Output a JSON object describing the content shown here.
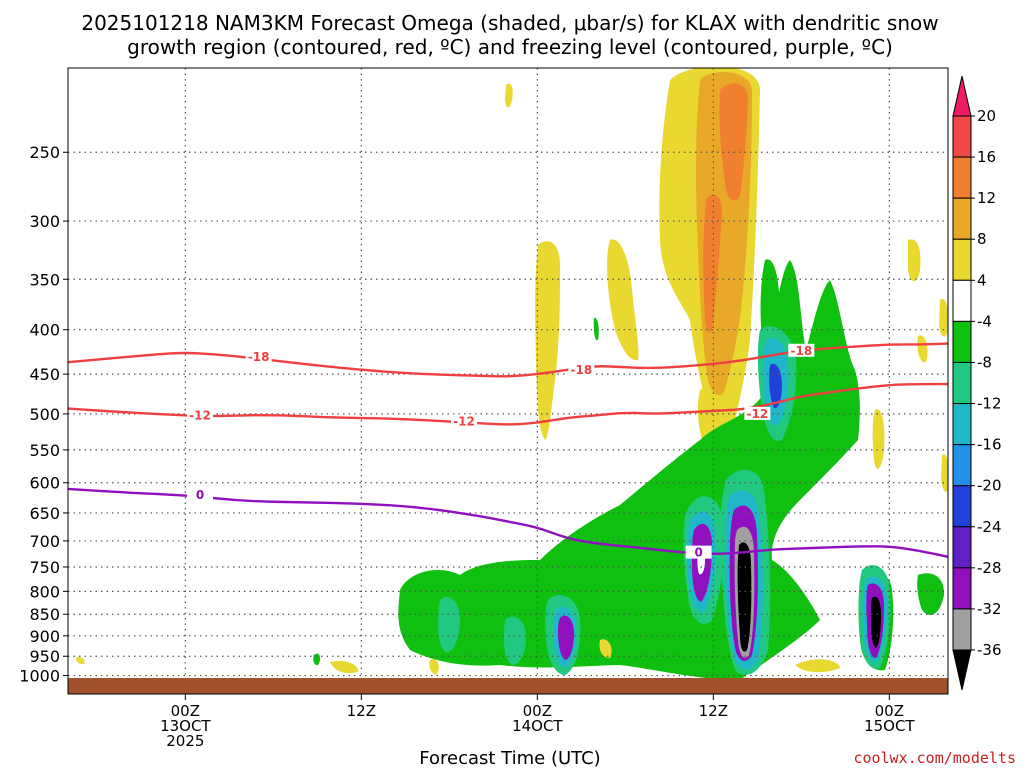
{
  "chart_data": {
    "type": "heatmap",
    "title_line1": "2025101218 NAM3KM Forecast Omega (shaded, μbar/s) for KLAX with dendritic snow",
    "title_line2": "growth region (contoured, red, ºC) and freezing level (contoured, purple, ºC)",
    "xlabel": "Forecast Time (UTC)",
    "credit": "coolwx.com/modelts",
    "colors": {
      "dgz": "#ee4040",
      "freezing": "#9010c0",
      "ground": "#a0522d",
      "credit": "#cc2020"
    },
    "y_axis": {
      "scale": "log-pressure",
      "range": [
        1050,
        200
      ],
      "ticks": [
        250,
        300,
        350,
        400,
        450,
        500,
        550,
        600,
        650,
        700,
        750,
        800,
        850,
        900,
        950,
        1000
      ]
    },
    "x_axis": {
      "range": [
        -4,
        26
      ],
      "ticks": [
        {
          "hour": 0,
          "lines": [
            "00Z",
            "13OCT",
            "2025"
          ]
        },
        {
          "hour": 6,
          "lines": [
            "12Z"
          ]
        },
        {
          "hour": 12,
          "lines": [
            "00Z",
            "14OCT"
          ]
        },
        {
          "hour": 18,
          "lines": [
            "12Z"
          ]
        },
        {
          "hour": 24,
          "lines": [
            "00Z",
            "15OCT"
          ]
        }
      ]
    },
    "colorbar": {
      "labels": [
        20,
        16,
        12,
        8,
        4,
        -4,
        -8,
        -12,
        -16,
        -20,
        -24,
        -28,
        -32,
        -36
      ],
      "colors": [
        "#ee1c60",
        "#f04848",
        "#f08030",
        "#e8a828",
        "#e8d830",
        "#ffffff",
        "#10c010",
        "#20c880",
        "#20b8c8",
        "#2090e8",
        "#2040d8",
        "#6020c8",
        "#9010c0",
        "#a0a0a0",
        "#000000"
      ]
    },
    "contours": [
      {
        "label": "-18",
        "color": "#ee4040",
        "points": [
          [
            -4,
            436
          ],
          [
            -2,
            430
          ],
          [
            -1,
            427
          ],
          [
            0,
            425
          ],
          [
            1,
            427
          ],
          [
            2,
            430
          ],
          [
            4,
            438
          ],
          [
            6,
            445
          ],
          [
            8,
            450
          ],
          [
            10,
            452
          ],
          [
            11,
            453
          ],
          [
            12,
            450
          ],
          [
            13,
            445
          ],
          [
            14,
            440
          ],
          [
            15,
            442
          ],
          [
            16,
            443
          ],
          [
            17,
            441
          ],
          [
            18,
            438
          ],
          [
            19,
            434
          ],
          [
            20,
            428
          ],
          [
            21,
            423
          ],
          [
            22,
            420
          ],
          [
            23,
            418
          ],
          [
            24,
            416
          ],
          [
            25,
            416
          ],
          [
            26,
            415
          ]
        ],
        "label_at": [
          [
            2.5,
            430
          ],
          [
            13.5,
            445
          ],
          [
            21.0,
            423
          ]
        ]
      },
      {
        "label": "-12",
        "color": "#ee4040",
        "points": [
          [
            -4,
            493
          ],
          [
            -2,
            498
          ],
          [
            0,
            502
          ],
          [
            1,
            503
          ],
          [
            3,
            501
          ],
          [
            5,
            505
          ],
          [
            7,
            506
          ],
          [
            9,
            510
          ],
          [
            11,
            515
          ],
          [
            12,
            512
          ],
          [
            13,
            505
          ],
          [
            14,
            502
          ],
          [
            15,
            498
          ],
          [
            16,
            500
          ],
          [
            17,
            498
          ],
          [
            18,
            496
          ],
          [
            19,
            494
          ],
          [
            20,
            487
          ],
          [
            21,
            477
          ],
          [
            22,
            472
          ],
          [
            23,
            467
          ],
          [
            24,
            463
          ],
          [
            25,
            462
          ],
          [
            26,
            462
          ]
        ],
        "label_at": [
          [
            0.5,
            502
          ],
          [
            9.5,
            510
          ],
          [
            19.5,
            500
          ]
        ]
      },
      {
        "label": "0",
        "color": "#9010c0",
        "points": [
          [
            -4,
            610
          ],
          [
            -2,
            616
          ],
          [
            0,
            620
          ],
          [
            2,
            630
          ],
          [
            4,
            632
          ],
          [
            6,
            634
          ],
          [
            8,
            640
          ],
          [
            10,
            655
          ],
          [
            11,
            665
          ],
          [
            12,
            675
          ],
          [
            13,
            695
          ],
          [
            14,
            705
          ],
          [
            15,
            710
          ],
          [
            16,
            716
          ],
          [
            17,
            722
          ],
          [
            18,
            725
          ],
          [
            19,
            722
          ],
          [
            20,
            716
          ],
          [
            21,
            714
          ],
          [
            22,
            712
          ],
          [
            23,
            710
          ],
          [
            24,
            710
          ],
          [
            25,
            718
          ],
          [
            26,
            730
          ]
        ],
        "label_at": [
          [
            0.5,
            620
          ],
          [
            17.5,
            722
          ]
        ]
      }
    ]
  }
}
